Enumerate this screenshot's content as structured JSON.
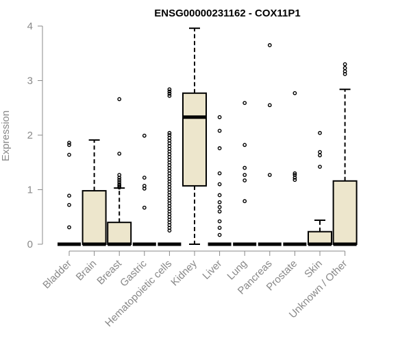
{
  "chart_data": {
    "type": "box",
    "title": "ENSG00000231162 - COX11P1",
    "xlabel": "",
    "ylabel": "Expression",
    "ylim": [
      0,
      4
    ],
    "yticks": [
      "0",
      "1",
      "2",
      "3",
      "4"
    ],
    "colors": {
      "box_fill": "#ede6cc",
      "stroke": "#000000",
      "axis": "#888888"
    },
    "categories": [
      "Bladder",
      "Brain",
      "Breast",
      "Gastric",
      "Hematopoietic cells",
      "Kidney",
      "Liver",
      "Lung",
      "Pancreas",
      "Prostate",
      "Skin",
      "Unknown / Other"
    ],
    "boxes": [
      {
        "min": 0,
        "q1": 0,
        "median": 0,
        "q3": 0,
        "max": 0,
        "outliers": [
          0.31,
          0.72,
          0.89,
          1.64,
          1.82,
          1.86
        ]
      },
      {
        "min": 0,
        "q1": 0,
        "median": 0,
        "q3": 0.98,
        "max": 1.91,
        "outliers": []
      },
      {
        "min": 0,
        "q1": 0,
        "median": 0,
        "q3": 0.4,
        "max": 1.03,
        "outliers": [
          1.04,
          1.07,
          1.1,
          1.14,
          1.18,
          1.22,
          1.27,
          1.66,
          2.66
        ]
      },
      {
        "min": 0,
        "q1": 0,
        "median": 0,
        "q3": 0,
        "max": 0,
        "outliers": [
          0.67,
          1.02,
          1.07,
          1.22,
          1.99
        ]
      },
      {
        "min": 0,
        "q1": 0,
        "median": 0,
        "q3": 0,
        "max": 0,
        "outliers": [
          0.25,
          0.3,
          0.35,
          0.4,
          0.45,
          0.5,
          0.55,
          0.6,
          0.65,
          0.7,
          0.75,
          0.8,
          0.85,
          0.9,
          0.95,
          1.0,
          1.05,
          1.1,
          1.15,
          1.2,
          1.25,
          1.3,
          1.35,
          1.4,
          1.45,
          1.5,
          1.55,
          1.6,
          1.65,
          1.7,
          1.75,
          1.8,
          1.85,
          1.9,
          1.95,
          2.0,
          2.04,
          2.72,
          2.76,
          2.8,
          2.84
        ]
      },
      {
        "min": 0,
        "q1": 1.07,
        "median": 2.33,
        "q3": 2.77,
        "max": 3.96,
        "outliers": []
      },
      {
        "min": 0,
        "q1": 0,
        "median": 0,
        "q3": 0,
        "max": 0,
        "outliers": [
          0.17,
          0.3,
          0.42,
          0.6,
          0.68,
          0.77,
          0.9,
          1.1,
          1.3,
          1.76,
          2.08,
          2.33
        ]
      },
      {
        "min": 0,
        "q1": 0,
        "median": 0,
        "q3": 0,
        "max": 0,
        "outliers": [
          0.79,
          1.17,
          1.27,
          1.4,
          1.82,
          2.59
        ]
      },
      {
        "min": 0,
        "q1": 0,
        "median": 0,
        "q3": 0,
        "max": 0,
        "outliers": [
          1.27,
          2.55,
          3.65
        ]
      },
      {
        "min": 0,
        "q1": 0,
        "median": 0,
        "q3": 0,
        "max": 0,
        "outliers": [
          1.18,
          1.22,
          1.27,
          1.3,
          2.77
        ]
      },
      {
        "min": 0,
        "q1": 0,
        "median": 0,
        "q3": 0.23,
        "max": 0.44,
        "outliers": [
          1.42,
          1.63,
          1.69,
          2.04
        ]
      },
      {
        "min": 0,
        "q1": 0,
        "median": 0,
        "q3": 1.16,
        "max": 2.84,
        "outliers": [
          3.12,
          3.17,
          3.23,
          3.3
        ]
      }
    ]
  }
}
